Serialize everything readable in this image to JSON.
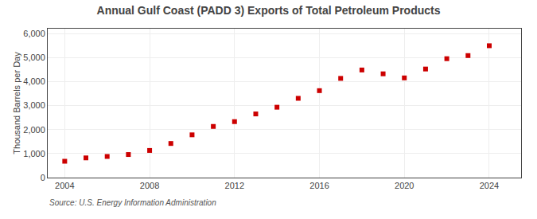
{
  "chart_data": {
    "type": "scatter",
    "title": "Annual Gulf Coast (PADD 3) Exports of Total Petroleum Products",
    "ylabel": "Thousand Barrels per Day",
    "annotations": [
      "Source: U.S. Energy Information Administration"
    ],
    "x": [
      2004,
      2005,
      2006,
      2007,
      2008,
      2009,
      2010,
      2011,
      2012,
      2013,
      2014,
      2015,
      2016,
      2017,
      2018,
      2019,
      2020,
      2021,
      2022,
      2023,
      2024
    ],
    "values": [
      680,
      820,
      880,
      960,
      1130,
      1420,
      1780,
      2130,
      2330,
      2650,
      2930,
      3300,
      3620,
      4130,
      4480,
      4320,
      4150,
      4520,
      4950,
      5080,
      5490
    ],
    "color": "#cc0000",
    "marker": "square",
    "xlim": [
      2003.2,
      2025.5
    ],
    "xticks": [
      2004,
      2008,
      2012,
      2016,
      2020,
      2024
    ],
    "ylim": [
      0,
      6200
    ],
    "yticks": [
      0,
      {
        "value": 1000,
        "label": "1,000"
      },
      {
        "value": 2000,
        "label": "2,000"
      },
      {
        "value": 3000,
        "label": "3,000"
      },
      {
        "value": 4000,
        "label": "4,000"
      },
      {
        "value": 5000,
        "label": "5,000"
      },
      {
        "value": 6000,
        "label": "6,000"
      }
    ],
    "grid": true
  }
}
